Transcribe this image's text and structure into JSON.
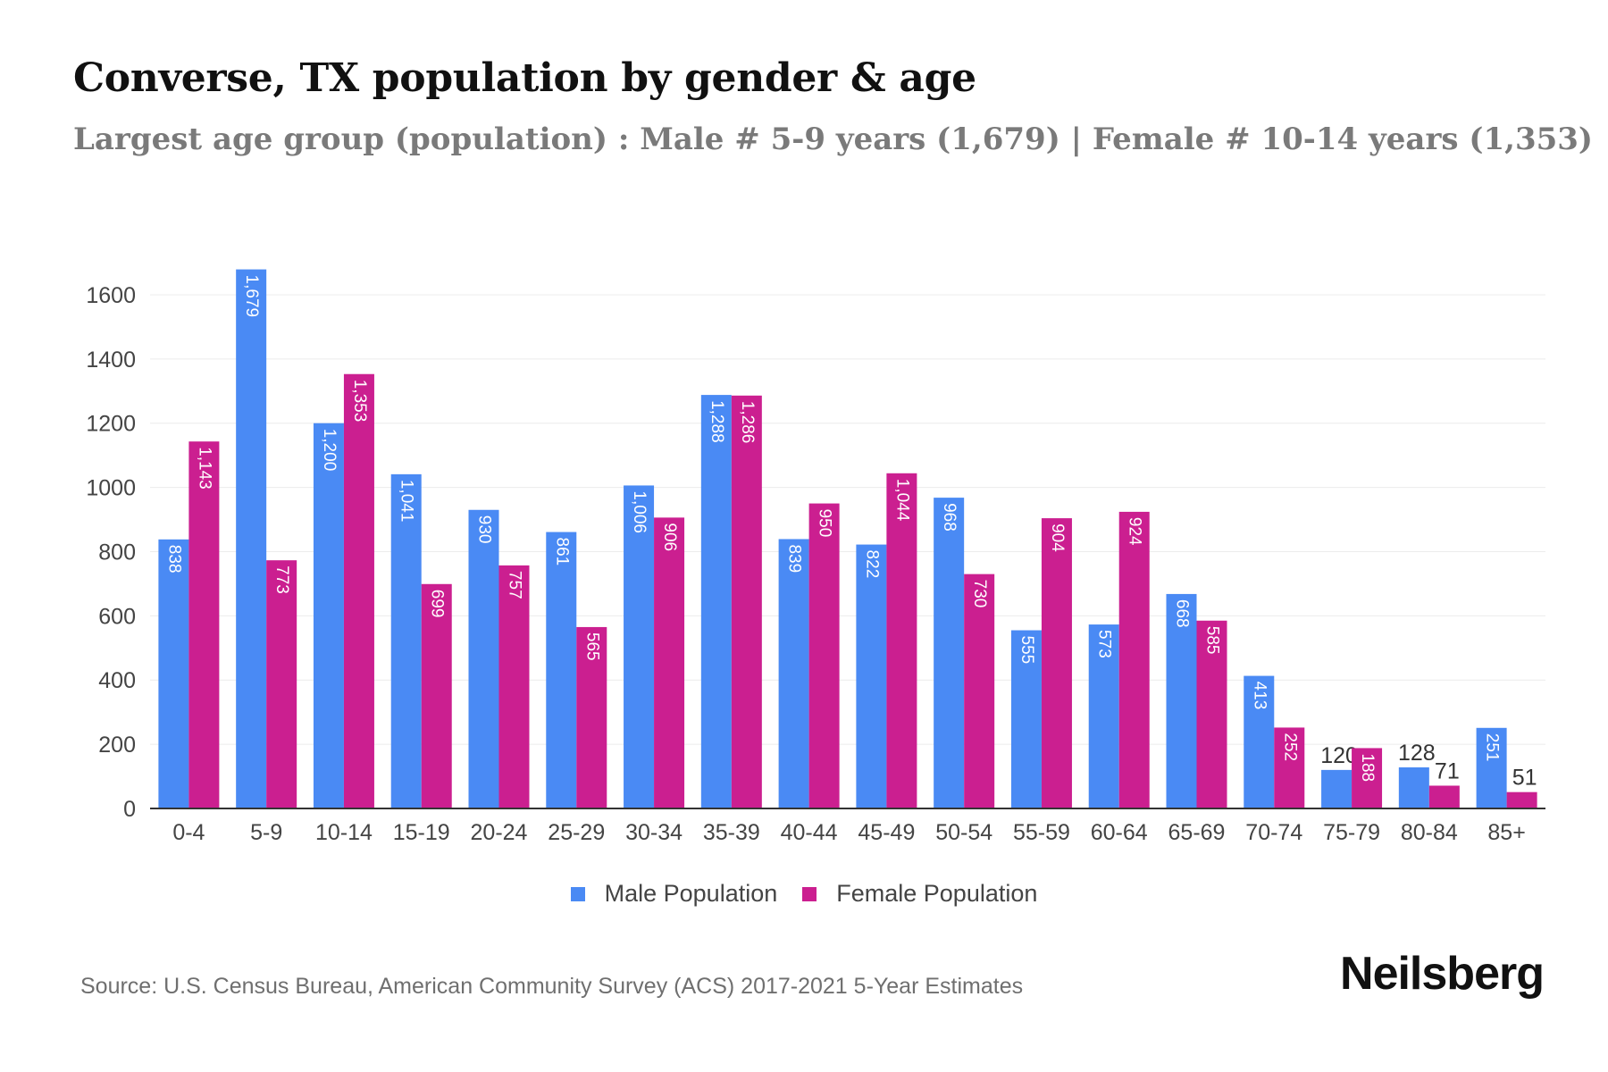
{
  "header": {
    "title": "Converse, TX population by gender & age",
    "subtitle": "Largest age group (population) : Male # 5-9 years (1,679) | Female # 10-14 years (1,353)"
  },
  "footer": {
    "source": "Source: U.S. Census Bureau, American Community Survey (ACS) 2017-2021 5-Year Estimates",
    "logo": "Neilsberg"
  },
  "colors": {
    "male": "#4a8af4",
    "female": "#cb1f90",
    "grid": "#ececec",
    "axis": "#333333"
  },
  "chart_data": {
    "type": "bar",
    "categories": [
      "0-4",
      "5-9",
      "10-14",
      "15-19",
      "20-24",
      "25-29",
      "30-34",
      "35-39",
      "40-44",
      "45-49",
      "50-54",
      "55-59",
      "60-64",
      "65-69",
      "70-74",
      "75-79",
      "80-84",
      "85+"
    ],
    "series": [
      {
        "name": "Male Population",
        "values": [
          838,
          1679,
          1200,
          1041,
          930,
          861,
          1006,
          1288,
          839,
          822,
          968,
          555,
          573,
          668,
          413,
          120,
          128,
          251
        ],
        "labels": [
          "838",
          "1,679",
          "1,200",
          "1,041",
          "930",
          "861",
          "1,006",
          "1,288",
          "839",
          "822",
          "968",
          "555",
          "573",
          "668",
          "413",
          "120",
          "128",
          "251"
        ]
      },
      {
        "name": "Female Population",
        "values": [
          1143,
          773,
          1353,
          699,
          757,
          565,
          906,
          1286,
          950,
          1044,
          730,
          904,
          924,
          585,
          252,
          188,
          71,
          51
        ],
        "labels": [
          "1,143",
          "773",
          "1,353",
          "699",
          "757",
          "565",
          "906",
          "1,286",
          "950",
          "1,044",
          "730",
          "904",
          "924",
          "585",
          "252",
          "188",
          "71",
          "51"
        ]
      }
    ],
    "ylim": [
      0,
      1700
    ],
    "yticks": [
      0,
      200,
      400,
      600,
      800,
      1000,
      1200,
      1400,
      1600
    ],
    "grid": true,
    "legend": "bottom-center"
  }
}
